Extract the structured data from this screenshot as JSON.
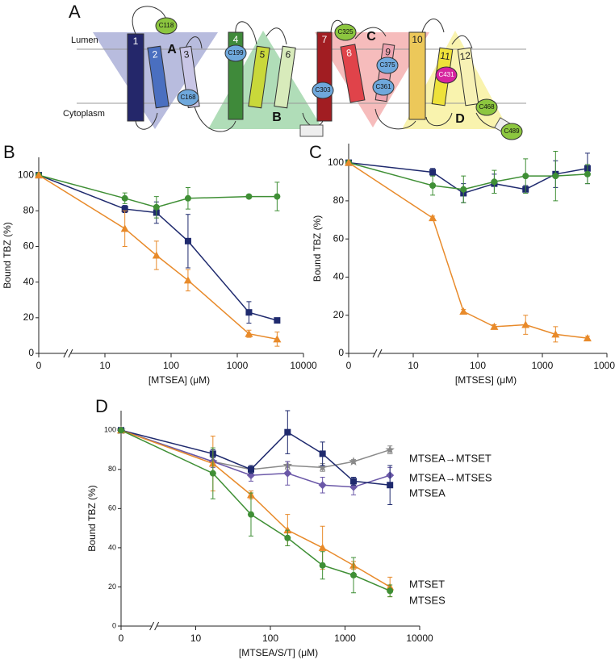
{
  "panel_labels": [
    "A",
    "B",
    "C",
    "D"
  ],
  "diagram": {
    "lumen": "Lumen",
    "cytoplasm": "Cytoplasm",
    "helices": [
      "1",
      "2",
      "3",
      "4",
      "5",
      "6",
      "7",
      "8",
      "9",
      "10",
      "11",
      "12"
    ],
    "domains": [
      "A",
      "B",
      "C",
      "D"
    ],
    "cysteines": [
      "C118",
      "C199",
      "C168",
      "C303",
      "C325",
      "C375",
      "C361",
      "C431",
      "C468",
      "C489"
    ]
  },
  "chart_data": [
    {
      "type": "line",
      "xlabel": "[MTSEA] (μM)",
      "ylabel": "Bound TBZ (%)",
      "xscale": "log",
      "x": [
        0,
        20,
        60,
        180,
        1500,
        4000
      ],
      "xlim": [
        0,
        10000
      ],
      "xticks": [
        0,
        10,
        100,
        1000,
        10000
      ],
      "ylim": [
        0,
        110
      ],
      "yticks": [
        0,
        20,
        40,
        60,
        80,
        100
      ],
      "series": [
        {
          "color": "#1f2a6e",
          "marker": "square",
          "values": [
            100,
            81,
            79,
            63,
            23,
            18.5
          ],
          "errors": [
            0,
            2,
            6,
            15,
            6,
            1
          ]
        },
        {
          "color": "#3f8f35",
          "marker": "circle",
          "values": [
            100,
            87,
            82,
            87,
            88,
            88
          ],
          "errors": [
            0,
            3,
            6,
            6,
            0,
            8
          ]
        },
        {
          "color": "#e88a2a",
          "marker": "triangle",
          "values": [
            100,
            70,
            55,
            41,
            11,
            8
          ],
          "errors": [
            0,
            10,
            8,
            6,
            2,
            4
          ]
        }
      ]
    },
    {
      "type": "line",
      "xlabel": "[MTSES] (μM)",
      "ylabel": "Bound TBZ (%)",
      "xscale": "log",
      "x": [
        0,
        20,
        60,
        180,
        550,
        1600,
        5000
      ],
      "xlim": [
        0,
        10000
      ],
      "xticks": [
        0,
        10,
        100,
        1000,
        10000
      ],
      "ylim": [
        0,
        110
      ],
      "yticks": [
        0,
        20,
        40,
        60,
        80,
        100
      ],
      "series": [
        {
          "color": "#1f2a6e",
          "marker": "square",
          "values": [
            100,
            95,
            84,
            89,
            86,
            94,
            97
          ],
          "errors": [
            0,
            2,
            5,
            5,
            2,
            7,
            8
          ]
        },
        {
          "color": "#3f8f35",
          "marker": "circle",
          "values": [
            100,
            88,
            86,
            90,
            93,
            93,
            94
          ],
          "errors": [
            0,
            5,
            7,
            6,
            9,
            13,
            5
          ]
        },
        {
          "color": "#e88a2a",
          "marker": "triangle",
          "values": [
            100,
            71,
            22,
            14,
            15,
            10,
            8
          ],
          "errors": [
            0,
            1,
            1,
            1,
            5,
            4,
            1
          ]
        }
      ]
    },
    {
      "type": "line",
      "xlabel": "[MTSEA/S/T] (μM)",
      "ylabel": "Bound TBZ (%)",
      "xscale": "log",
      "x": [
        0,
        17,
        55,
        170,
        500,
        1300,
        4000
      ],
      "xlim": [
        0,
        10000
      ],
      "xticks": [
        0,
        10,
        100,
        1000,
        10000
      ],
      "ylim": [
        0,
        110
      ],
      "yticks": [
        0,
        20,
        40,
        60,
        80,
        100
      ],
      "series": [
        {
          "name": "MTSEA→MTSET",
          "color": "#8a8a8a",
          "marker": "star",
          "values": [
            100,
            84,
            80,
            82,
            81,
            84,
            90
          ],
          "errors": [
            0,
            2,
            2,
            2,
            2,
            1,
            2
          ]
        },
        {
          "name": "MTSEA→MTSES",
          "color": "#6b58a8",
          "marker": "diamond",
          "values": [
            100,
            84,
            77,
            78,
            72,
            71,
            77
          ],
          "errors": [
            0,
            3,
            3,
            6,
            4,
            4,
            4
          ]
        },
        {
          "name": "MTSEA",
          "color": "#1f2a6e",
          "marker": "square",
          "values": [
            100,
            88,
            80,
            99,
            88,
            74,
            72
          ],
          "errors": [
            0,
            2,
            2,
            11,
            6,
            2,
            10
          ]
        },
        {
          "name": "MTSET",
          "color": "#e88a2a",
          "marker": "triangle",
          "values": [
            100,
            83,
            67,
            49,
            40,
            31,
            20
          ],
          "errors": [
            0,
            14,
            2,
            8,
            11,
            2,
            5
          ]
        },
        {
          "name": "MTSES",
          "color": "#3f8f35",
          "marker": "circle",
          "values": [
            100,
            78,
            57,
            45,
            31,
            26,
            18
          ],
          "errors": [
            0,
            13,
            11,
            4,
            7,
            9,
            3
          ]
        }
      ]
    }
  ]
}
